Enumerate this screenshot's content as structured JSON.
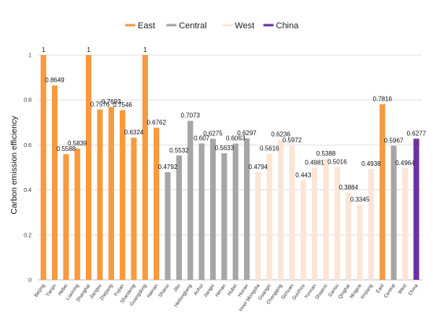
{
  "chart_data": {
    "type": "bar",
    "title": "",
    "xlabel": "",
    "ylabel": "Carbon  emission  efficiency",
    "ylim": [
      0,
      1
    ],
    "yticks": [
      0,
      0.2,
      0.4,
      0.6,
      0.8,
      1
    ],
    "grid": "horizontal",
    "legend_position": "top",
    "legend": [
      {
        "name": "East",
        "color": "#F79A3E"
      },
      {
        "name": "Central",
        "color": "#A6A6A6"
      },
      {
        "name": "West",
        "color": "#FBE5D6"
      },
      {
        "name": "China",
        "color": "#7030A0"
      }
    ],
    "categories": [
      "Beijing",
      "Tianjin",
      "Hebei",
      "Liaoning",
      "Shanghai",
      "Jiangsu",
      "Zhejiang",
      "Fujian",
      "Shandong",
      "Guangdong",
      "Hainan",
      "Shanxi",
      "Jilin",
      "Heilongjiang",
      "Anhui",
      "Jiangxi",
      "Henan",
      "Hubei",
      "Hunan",
      "Inner Mongolia",
      "Guangxi",
      "Chongqing",
      "Sichuan",
      "Guizhou",
      "Yunnan",
      "Shaanxi",
      "Gansu",
      "Qinghai",
      "Ningxia",
      "Xinjiang",
      "East",
      "Central",
      "West",
      "China"
    ],
    "values": [
      1,
      0.8649,
      0.5588,
      0.5839,
      1,
      0.7576,
      0.7693,
      0.7546,
      0.6324,
      1,
      0.6762,
      0.4792,
      0.5532,
      0.7073,
      0.607,
      0.6275,
      0.5633,
      0.6063,
      0.6297,
      0.4794,
      0.5616,
      0.6236,
      0.5972,
      0.443,
      0.4981,
      0.5388,
      0.5016,
      0.3884,
      0.3345,
      0.4938,
      0.7816,
      0.5967,
      0.4964,
      0.6277
    ],
    "labels": [
      "1",
      "0.8649",
      "0.5588",
      "0.5839",
      "1",
      "0.7576",
      "0.7693",
      "0.7546",
      "0.6324",
      "1",
      "0.6762",
      "0.4792",
      "0.5532",
      "0.7073",
      "0.607",
      "0.6275",
      "0.5633",
      "0.6063",
      "0.6297",
      "0.4794",
      "0.5616",
      "0.6236",
      "0.5972",
      "0.443",
      "0.4981",
      "0.5388",
      "0.5016",
      "0.3884",
      "0.3345",
      "0.4938",
      "0.7816",
      "0.5967",
      "0.4964",
      "0.6277"
    ],
    "groups": [
      "East",
      "East",
      "East",
      "East",
      "East",
      "East",
      "East",
      "East",
      "East",
      "East",
      "East",
      "Central",
      "Central",
      "Central",
      "Central",
      "Central",
      "Central",
      "Central",
      "Central",
      "West",
      "West",
      "West",
      "West",
      "West",
      "West",
      "West",
      "West",
      "West",
      "West",
      "West",
      "East",
      "Central",
      "West",
      "China"
    ]
  }
}
